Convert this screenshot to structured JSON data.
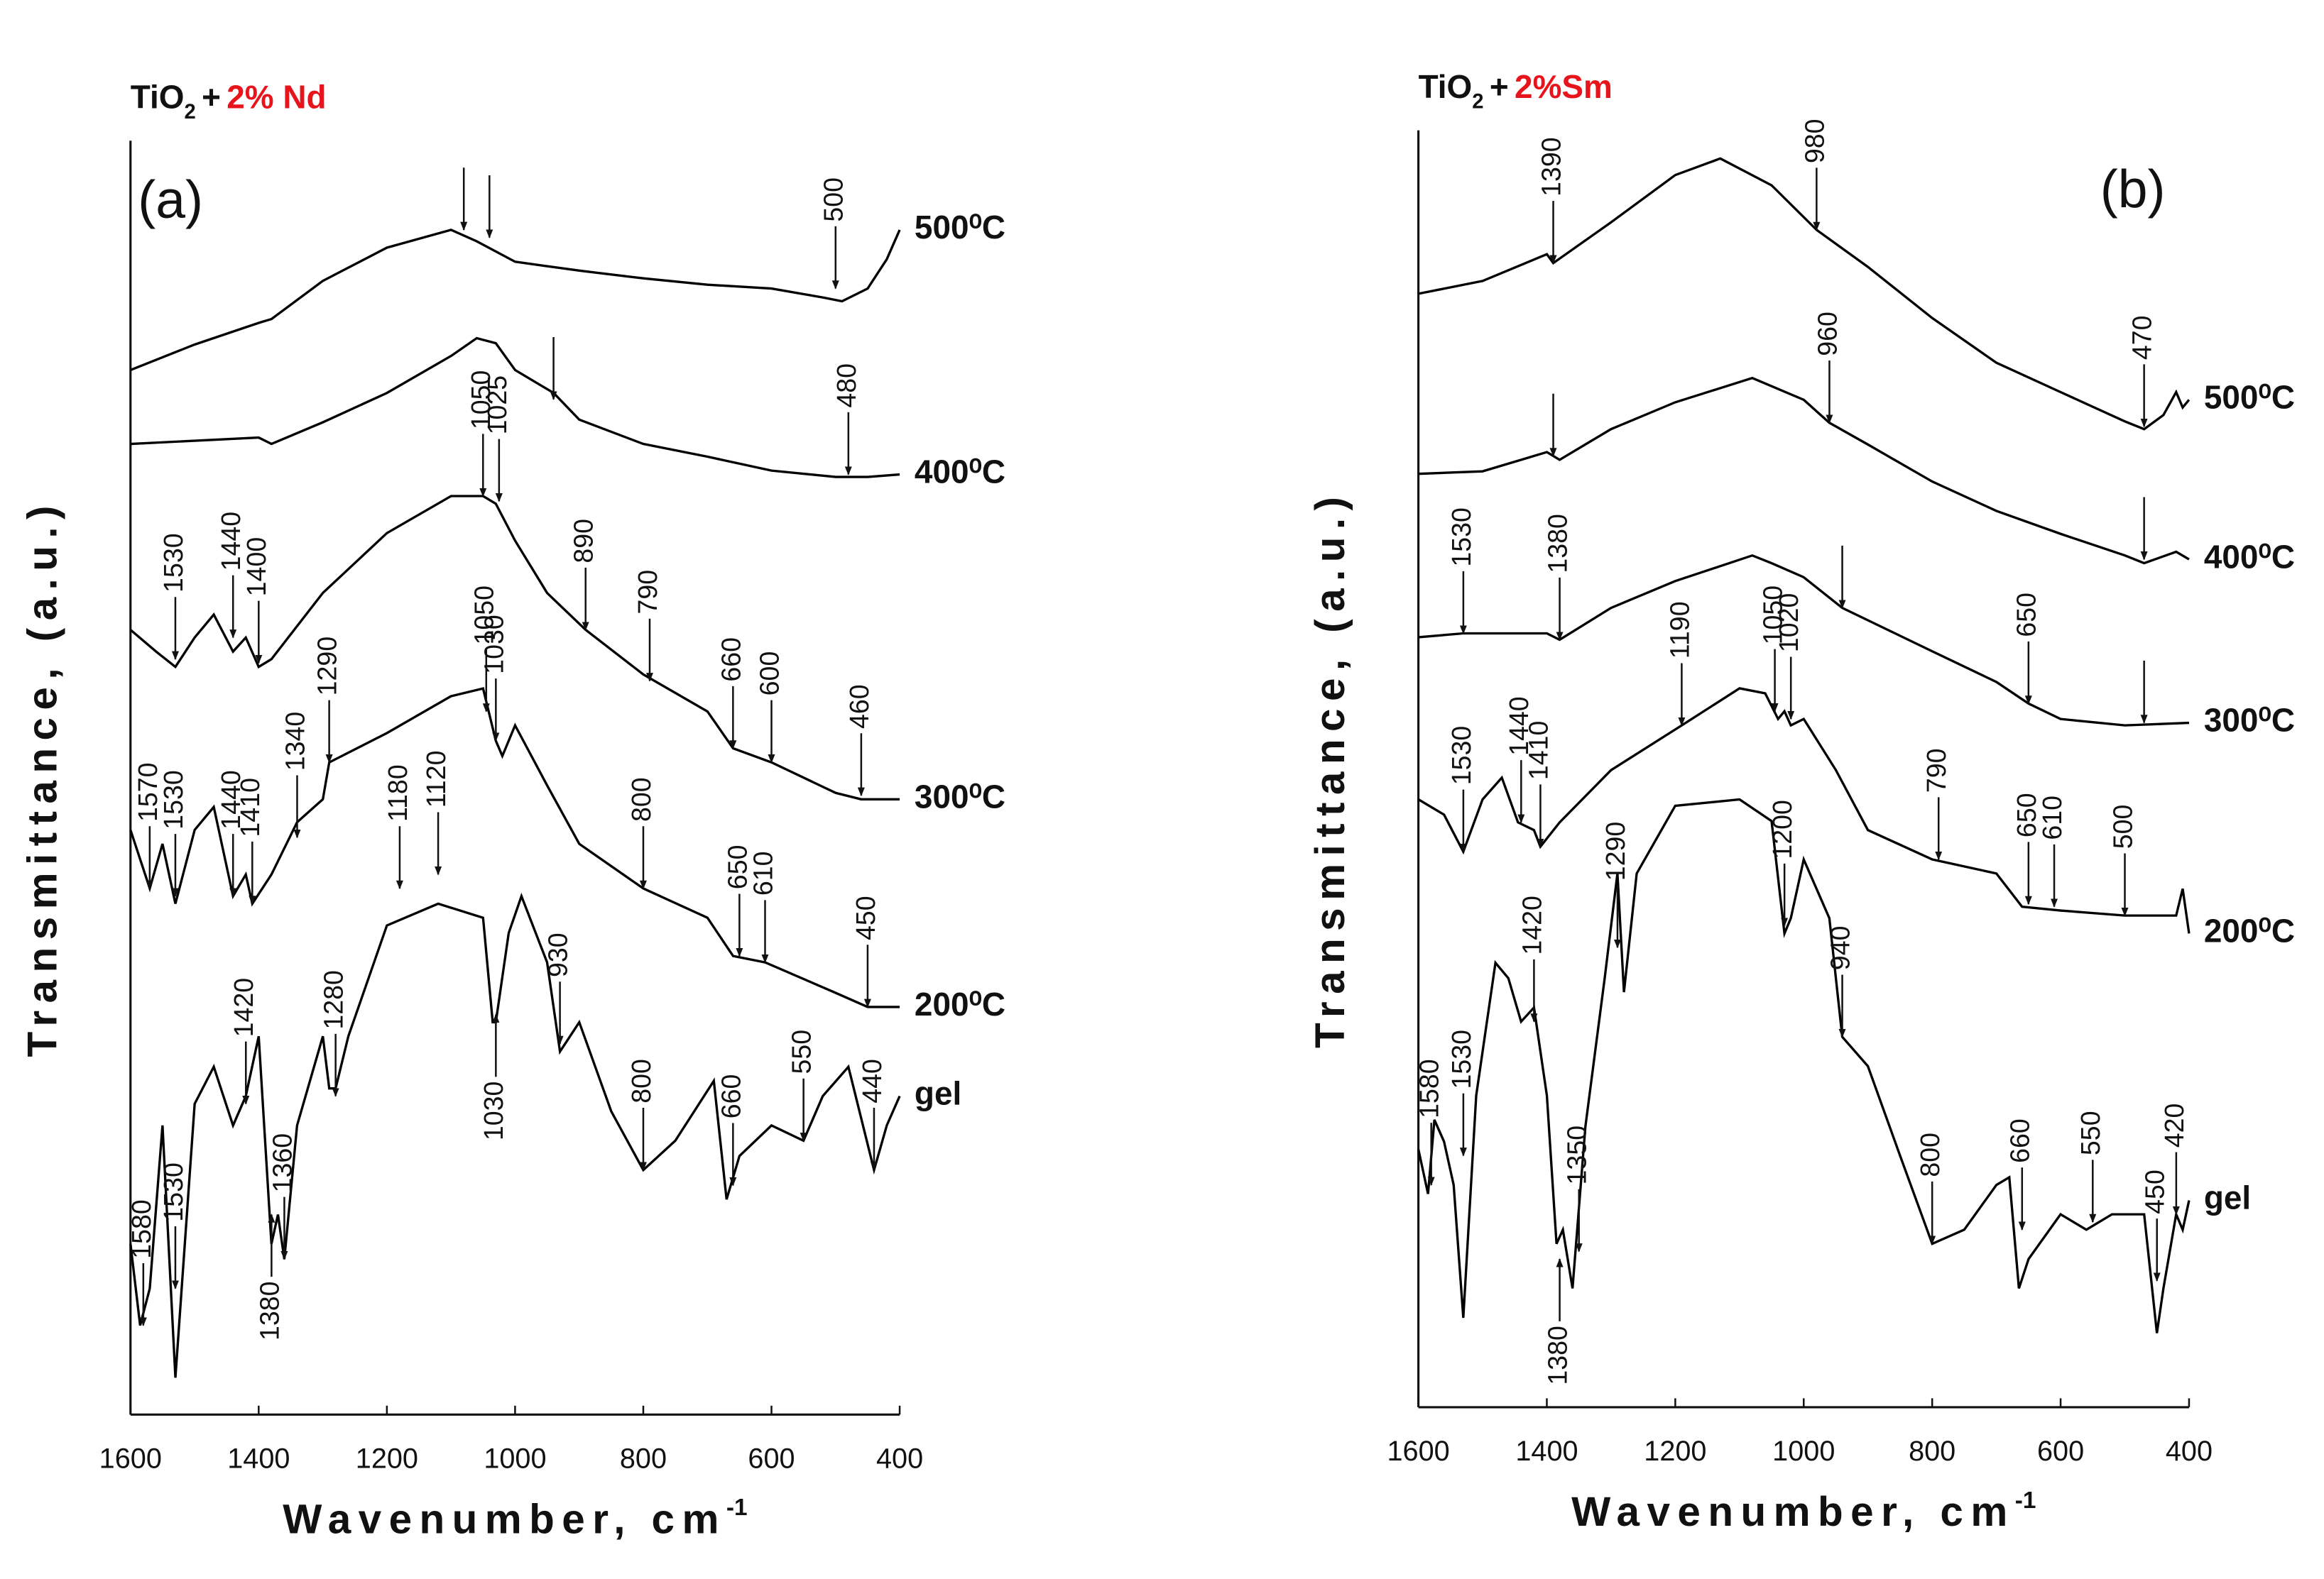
{
  "chart_data": [
    {
      "type": "line",
      "title": {
        "base": "TiO",
        "sub": "2",
        "plus": "+",
        "dopant": "2% Nd"
      },
      "panel": "(a)",
      "xlabel": {
        "text": "Wavenumber, cm",
        "sup": "-1"
      },
      "ylabel": "Transmittance, (a.u.)",
      "xlim": [
        1600,
        400
      ],
      "xticks": [
        1600,
        1400,
        1200,
        1000,
        800,
        600,
        400
      ],
      "ylim": [
        0,
        100
      ],
      "series": [
        {
          "name": "500⁰C",
          "color": "#000000",
          "x": [
            1600,
            1500,
            1400,
            1380,
            1300,
            1200,
            1100,
            1060,
            1000,
            900,
            800,
            700,
            600,
            520,
            490,
            450,
            420,
            400
          ],
          "values": [
            82.0,
            84.0,
            85.7,
            86.0,
            89.0,
            91.6,
            93.0,
            92.1,
            90.5,
            89.8,
            89.2,
            88.7,
            88.4,
            87.7,
            87.4,
            88.4,
            90.7,
            93.0
          ]
        },
        {
          "name": "400⁰C",
          "color": "#000000",
          "x": [
            1600,
            1400,
            1380,
            1300,
            1200,
            1100,
            1060,
            1030,
            1000,
            940,
            900,
            800,
            700,
            600,
            500,
            450,
            400
          ],
          "values": [
            76.2,
            76.7,
            76.2,
            77.9,
            80.2,
            83.1,
            84.5,
            84.1,
            82.0,
            80.2,
            78.1,
            76.2,
            75.2,
            74.1,
            73.6,
            73.6,
            73.8
          ]
        },
        {
          "name": "300⁰C",
          "color": "#000000",
          "x": [
            1600,
            1560,
            1530,
            1500,
            1470,
            1440,
            1420,
            1400,
            1380,
            1300,
            1200,
            1100,
            1050,
            1030,
            1000,
            950,
            890,
            800,
            700,
            660,
            600,
            500,
            460,
            400
          ],
          "values": [
            61.6,
            59.9,
            58.7,
            61.0,
            62.8,
            59.9,
            61.0,
            58.7,
            59.3,
            64.5,
            69.2,
            72.1,
            72.1,
            71.5,
            68.6,
            64.5,
            61.6,
            58.1,
            55.2,
            52.3,
            51.2,
            48.8,
            48.3,
            48.3
          ]
        },
        {
          "name": "200⁰C",
          "color": "#000000",
          "x": [
            1600,
            1570,
            1550,
            1530,
            1500,
            1470,
            1440,
            1420,
            1410,
            1380,
            1340,
            1300,
            1290,
            1200,
            1100,
            1050,
            1030,
            1020,
            1000,
            950,
            900,
            800,
            700,
            660,
            610,
            500,
            450,
            400
          ],
          "values": [
            45.9,
            41.3,
            44.8,
            40.1,
            45.9,
            47.7,
            40.7,
            42.4,
            40.1,
            42.4,
            46.5,
            48.3,
            51.2,
            53.5,
            56.4,
            57.0,
            52.9,
            51.7,
            54.1,
            49.4,
            44.8,
            41.3,
            39.0,
            36.0,
            35.5,
            33.1,
            32.0,
            32.0
          ]
        },
        {
          "name": "gel",
          "color": "#000000",
          "x": [
            1600,
            1585,
            1570,
            1550,
            1530,
            1500,
            1470,
            1440,
            1420,
            1400,
            1380,
            1370,
            1360,
            1340,
            1300,
            1290,
            1280,
            1260,
            1200,
            1120,
            1050,
            1035,
            1030,
            1010,
            990,
            950,
            930,
            900,
            850,
            800,
            750,
            690,
            670,
            650,
            600,
            550,
            520,
            480,
            440,
            420,
            400
          ],
          "values": [
            13.4,
            7.0,
            9.9,
            22.7,
            2.9,
            24.4,
            27.3,
            22.7,
            25.0,
            29.7,
            13.4,
            15.7,
            12.2,
            22.7,
            29.7,
            25.6,
            25.6,
            29.7,
            38.4,
            40.1,
            39.0,
            30.8,
            30.8,
            37.8,
            40.7,
            35.5,
            28.5,
            30.8,
            23.8,
            19.2,
            21.5,
            26.2,
            16.9,
            20.3,
            22.7,
            21.5,
            25.0,
            27.3,
            19.2,
            22.7,
            25.0
          ]
        }
      ],
      "annotations": [
        {
          "x": 1080,
          "y": 93.0
        },
        {
          "x": 1040,
          "y": 92.4
        },
        {
          "text": "500",
          "x": 500,
          "y": 88.4
        },
        {
          "text": "1050",
          "x": 1050,
          "y": 72.1
        },
        {
          "text": "1025",
          "x": 1025,
          "y": 71.7
        },
        {
          "x": 940,
          "y": 79.7
        },
        {
          "text": "480",
          "x": 480,
          "y": 73.8
        },
        {
          "text": "1530",
          "x": 1530,
          "y": 59.3
        },
        {
          "text": "1440",
          "x": 1440,
          "y": 61.0
        },
        {
          "text": "1400",
          "x": 1400,
          "y": 59.0
        },
        {
          "text": "890",
          "x": 890,
          "y": 61.6
        },
        {
          "text": "790",
          "x": 790,
          "y": 57.6
        },
        {
          "text": "660",
          "x": 660,
          "y": 52.3
        },
        {
          "text": "600",
          "x": 600,
          "y": 51.2
        },
        {
          "text": "460",
          "x": 460,
          "y": 48.6
        },
        {
          "text": "1050",
          "x": 1045,
          "y": 55.2
        },
        {
          "text": "1030",
          "x": 1030,
          "y": 52.9
        },
        {
          "text": "1290",
          "x": 1290,
          "y": 51.2
        },
        {
          "text": "1340",
          "x": 1340,
          "y": 45.3
        },
        {
          "text": "1570",
          "x": 1570,
          "y": 41.3
        },
        {
          "text": "1530",
          "x": 1530,
          "y": 40.7
        },
        {
          "text": "1440",
          "x": 1440,
          "y": 40.7
        },
        {
          "text": "1410",
          "x": 1410,
          "y": 40.1
        },
        {
          "text": "1180",
          "x": 1180,
          "y": 41.3
        },
        {
          "text": "1120",
          "x": 1120,
          "y": 42.4
        },
        {
          "text": "800",
          "x": 800,
          "y": 41.3
        },
        {
          "text": "650",
          "x": 650,
          "y": 36.0
        },
        {
          "text": "610",
          "x": 610,
          "y": 35.5
        },
        {
          "text": "450",
          "x": 450,
          "y": 32.0
        },
        {
          "text": "1420",
          "x": 1420,
          "y": 24.4
        },
        {
          "text": "1280",
          "x": 1280,
          "y": 25.0
        },
        {
          "text": "930",
          "x": 930,
          "y": 29.1
        },
        {
          "text": "1030",
          "x": 1030,
          "y": 31.4,
          "side": "below"
        },
        {
          "text": "800",
          "x": 800,
          "y": 19.2
        },
        {
          "text": "660",
          "x": 660,
          "y": 18.0
        },
        {
          "text": "550",
          "x": 550,
          "y": 21.5
        },
        {
          "text": "440",
          "x": 440,
          "y": 19.2
        },
        {
          "text": "1360",
          "x": 1360,
          "y": 12.2
        },
        {
          "text": "1380",
          "x": 1380,
          "y": 15.7,
          "side": "below"
        },
        {
          "text": "1580",
          "x": 1580,
          "y": 7.0
        },
        {
          "text": "1530",
          "x": 1530,
          "y": 9.9
        }
      ]
    },
    {
      "type": "line",
      "title": {
        "base": "TiO",
        "sub": "2",
        "plus": "+",
        "dopant": "2%Sm"
      },
      "panel": "(b)",
      "xlabel": {
        "text": "Wavenumber, cm",
        "sup": "-1"
      },
      "ylabel": "Transmittance, (a.u.)",
      "xlim": [
        1600,
        400
      ],
      "xticks": [
        1600,
        1400,
        1200,
        1000,
        800,
        600,
        400
      ],
      "ylim": [
        0,
        100
      ],
      "series": [
        {
          "name": "500⁰C",
          "color": "#000000",
          "x": [
            1600,
            1500,
            1400,
            1390,
            1300,
            1200,
            1130,
            1050,
            980,
            900,
            800,
            700,
            600,
            500,
            470,
            440,
            420,
            410,
            400
          ],
          "values": [
            87.2,
            88.2,
            90.3,
            89.6,
            92.8,
            96.5,
            97.8,
            95.7,
            92.2,
            89.3,
            85.3,
            81.8,
            79.5,
            77.2,
            76.6,
            77.7,
            79.5,
            78.3,
            78.9
          ]
        },
        {
          "name": "400⁰C",
          "color": "#000000",
          "x": [
            1600,
            1500,
            1400,
            1380,
            1300,
            1200,
            1080,
            1000,
            960,
            900,
            800,
            700,
            600,
            500,
            470,
            420,
            400
          ],
          "values": [
            73.1,
            73.3,
            74.8,
            74.2,
            76.6,
            78.7,
            80.6,
            78.9,
            77.1,
            75.4,
            72.5,
            70.2,
            68.4,
            66.7,
            66.1,
            67.0,
            66.4
          ]
        },
        {
          "name": "300⁰C",
          "color": "#000000",
          "x": [
            1600,
            1530,
            1400,
            1380,
            1300,
            1200,
            1080,
            1050,
            1000,
            940,
            800,
            700,
            650,
            600,
            500,
            400
          ],
          "values": [
            60.3,
            60.6,
            60.6,
            60.1,
            62.6,
            64.7,
            66.7,
            66.1,
            65.0,
            62.6,
            59.2,
            56.8,
            55.1,
            53.9,
            53.4,
            53.6
          ]
        },
        {
          "name": "200⁰C",
          "color": "#000000",
          "x": [
            1600,
            1560,
            1530,
            1500,
            1470,
            1445,
            1420,
            1410,
            1380,
            1300,
            1190,
            1100,
            1060,
            1040,
            1030,
            1020,
            1000,
            950,
            900,
            800,
            700,
            660,
            600,
            500,
            420,
            410,
            400
          ],
          "values": [
            47.6,
            46.4,
            43.5,
            47.6,
            49.3,
            45.8,
            45.2,
            43.9,
            45.8,
            49.9,
            53.4,
            56.3,
            55.9,
            53.9,
            54.5,
            53.4,
            53.9,
            49.9,
            45.2,
            42.9,
            41.8,
            39.2,
            38.9,
            38.5,
            38.5,
            40.6,
            37.1
          ]
        },
        {
          "name": "gel",
          "color": "#000000",
          "x": [
            1600,
            1585,
            1575,
            1560,
            1545,
            1530,
            1510,
            1480,
            1460,
            1440,
            1420,
            1400,
            1385,
            1375,
            1360,
            1340,
            1310,
            1290,
            1280,
            1260,
            1200,
            1100,
            1050,
            1030,
            1020,
            1000,
            960,
            940,
            900,
            850,
            800,
            750,
            700,
            680,
            665,
            650,
            600,
            560,
            520,
            470,
            450,
            440,
            420,
            410,
            400
          ],
          "values": [
            20.2,
            16.7,
            22.5,
            20.8,
            17.4,
            7.0,
            24.4,
            34.8,
            33.6,
            30.2,
            31.3,
            24.4,
            12.8,
            13.9,
            9.3,
            22.0,
            33.6,
            41.8,
            32.5,
            41.8,
            47.1,
            47.6,
            45.9,
            37.1,
            38.3,
            42.9,
            38.3,
            29.0,
            26.7,
            19.7,
            12.8,
            13.9,
            17.4,
            18.0,
            9.3,
            11.6,
            15.1,
            13.9,
            15.1,
            15.1,
            5.8,
            9.3,
            15.1,
            13.9,
            16.2
          ]
        }
      ],
      "annotations": [
        {
          "text": "1390",
          "x": 1390,
          "y": 89.6
        },
        {
          "text": "980",
          "x": 980,
          "y": 92.2
        },
        {
          "text": "470",
          "x": 470,
          "y": 76.8
        },
        {
          "x": 1390,
          "y": 74.5
        },
        {
          "text": "960",
          "x": 960,
          "y": 77.1
        },
        {
          "x": 470,
          "y": 66.4
        },
        {
          "text": "1530",
          "x": 1530,
          "y": 60.6
        },
        {
          "text": "1380",
          "x": 1380,
          "y": 60.1
        },
        {
          "x": 940,
          "y": 62.6
        },
        {
          "text": "650",
          "x": 650,
          "y": 55.1
        },
        {
          "x": 470,
          "y": 53.6
        },
        {
          "text": "1530",
          "x": 1530,
          "y": 43.5
        },
        {
          "text": "1440",
          "x": 1440,
          "y": 45.8
        },
        {
          "text": "1410",
          "x": 1410,
          "y": 43.9
        },
        {
          "text": "1190",
          "x": 1190,
          "y": 53.4
        },
        {
          "text": "1050",
          "x": 1045,
          "y": 54.5
        },
        {
          "text": "1020",
          "x": 1020,
          "y": 53.9
        },
        {
          "text": "790",
          "x": 790,
          "y": 42.9
        },
        {
          "text": "650",
          "x": 650,
          "y": 39.4
        },
        {
          "text": "610",
          "x": 610,
          "y": 39.2
        },
        {
          "text": "500",
          "x": 500,
          "y": 38.5
        },
        {
          "text": "1420",
          "x": 1420,
          "y": 30.2
        },
        {
          "text": "1290",
          "x": 1290,
          "y": 36.0
        },
        {
          "text": "1200",
          "x": 1030,
          "y": 37.7
        },
        {
          "text": "940",
          "x": 940,
          "y": 29.0
        },
        {
          "text": "800",
          "x": 800,
          "y": 12.8
        },
        {
          "text": "660",
          "x": 660,
          "y": 13.9
        },
        {
          "text": "550",
          "x": 550,
          "y": 14.5
        },
        {
          "text": "450",
          "x": 450,
          "y": 9.9
        },
        {
          "text": "420",
          "x": 420,
          "y": 15.1
        },
        {
          "text": "1580",
          "x": 1580,
          "y": 17.4
        },
        {
          "text": "1530",
          "x": 1530,
          "y": 19.7
        },
        {
          "text": "1350",
          "x": 1350,
          "y": 12.2
        },
        {
          "text": "1380",
          "x": 1380,
          "y": 11.6,
          "side": "below"
        }
      ]
    }
  ]
}
